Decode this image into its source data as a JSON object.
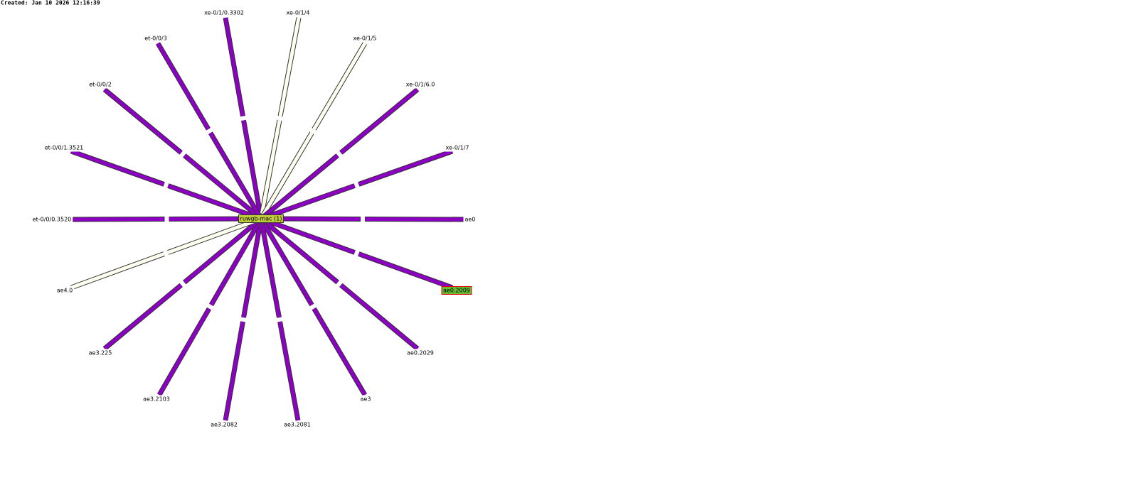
{
  "created": "Created: Jan 10 2026 12:16:39",
  "center": {
    "label": "ruwgb-mac (1)",
    "color": "#c0cc3c"
  },
  "links": [
    {
      "label": "xe-0/1/0.3302",
      "color": "#8c00c4"
    },
    {
      "label": "xe-0/1/4",
      "color": "#fffff0"
    },
    {
      "label": "xe-0/1/5",
      "color": "#fffff0"
    },
    {
      "label": "xe-0/1/6.0",
      "color": "#8c00c4"
    },
    {
      "label": "xe-0/1/7",
      "color": "#8c00c4"
    },
    {
      "label": "ae0",
      "color": "#8c00c4"
    },
    {
      "label": "ae0.2009",
      "color": "#8c00c4",
      "highlight": true
    },
    {
      "label": "ae0.2029",
      "color": "#8c00c4"
    },
    {
      "label": "ae3",
      "color": "#8c00c4"
    },
    {
      "label": "ae3.2081",
      "color": "#8c00c4"
    },
    {
      "label": "ae3.2082",
      "color": "#8c00c4"
    },
    {
      "label": "ae3.2103",
      "color": "#8c00c4"
    },
    {
      "label": "ae3.225",
      "color": "#8c00c4"
    },
    {
      "label": "ae4.0",
      "color": "#fffff0"
    },
    {
      "label": "et-0/0/0.3520",
      "color": "#8c00c4"
    },
    {
      "label": "et-0/0/1.3521",
      "color": "#8c00c4"
    },
    {
      "label": "et-0/0/2",
      "color": "#8c00c4"
    },
    {
      "label": "et-0/0/3",
      "color": "#8c00c4"
    }
  ]
}
